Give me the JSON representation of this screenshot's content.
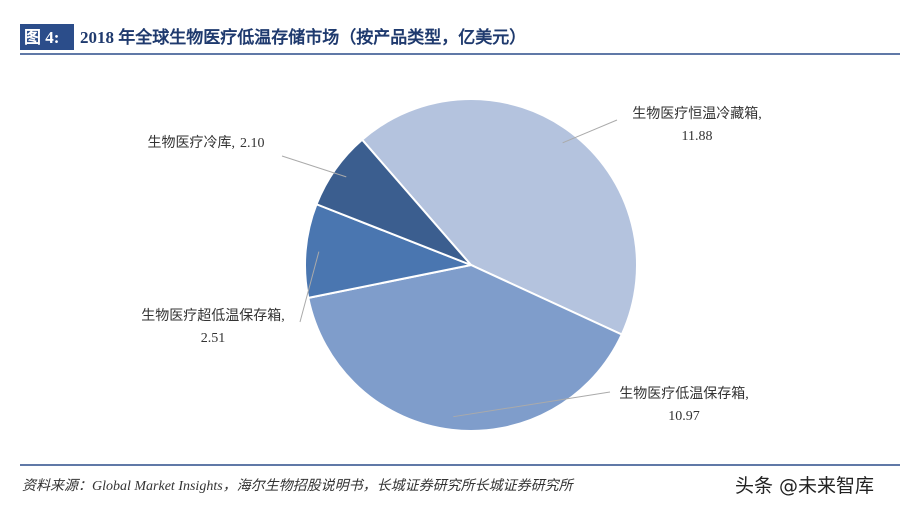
{
  "figure_label": "图 4:",
  "chart_data": {
    "type": "pie",
    "title": "2018 年全球生物医疗低温存储市场（按产品类型，亿美元）",
    "categories": [
      "生物医疗恒温冷藏箱,",
      "生物医疗低温保存箱,",
      "生物医疗超低温保存箱,",
      "生物医疗冷库,"
    ],
    "values": [
      11.88,
      10.97,
      2.51,
      2.1
    ],
    "value_labels": [
      "11.88",
      "10.97",
      "2.51",
      "2.10"
    ],
    "colors": [
      "#b4c3de",
      "#7f9dcb",
      "#4a76b0",
      "#3b5e8f"
    ]
  },
  "source": "资料来源：Global Market Insights，海尔生物招股说明书，长城证券研究所长城证券研究所",
  "watermark": "头条 @未来智库"
}
